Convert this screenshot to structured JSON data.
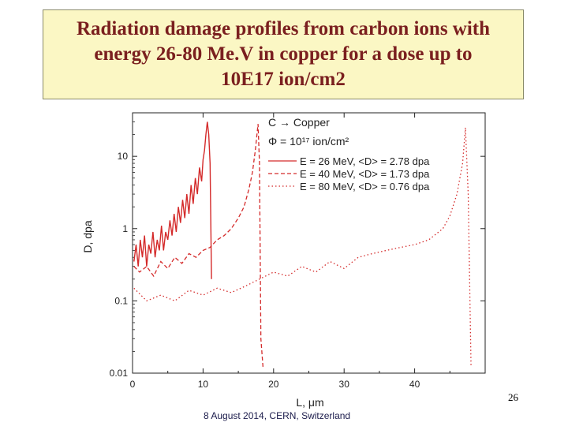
{
  "title": {
    "line1": "Radiation damage profiles from carbon ions with",
    "line2": "energy 26-80 Me.V in copper for a dose up to",
    "line3": "10E17 ion/cm2"
  },
  "footer": "8 August 2014, CERN, Switzerland",
  "slide_number": "26",
  "chart_data": {
    "type": "line",
    "annotation": {
      "line1": "C → Copper",
      "line2": "Φ = 10¹⁷ ion/cm²"
    },
    "xlabel": "L, μm",
    "ylabel": "D, dpa",
    "xlim": [
      0,
      50
    ],
    "ylim": [
      0.01,
      40
    ],
    "yscale": "log",
    "xticks": [
      0,
      10,
      20,
      30,
      40
    ],
    "yticks": [
      0.01,
      0.1,
      1,
      10
    ],
    "ytick_labels": [
      "0.01",
      "0.1",
      "1",
      "10"
    ],
    "legend_position": "top-right",
    "color": "#d42a2a",
    "series": [
      {
        "name": "E = 26 MeV, <D> = 2.78 dpa",
        "style": "solid",
        "x": [
          0.2,
          0.5,
          0.8,
          1.1,
          1.4,
          1.7,
          2.0,
          2.3,
          2.6,
          2.9,
          3.2,
          3.5,
          3.8,
          4.1,
          4.4,
          4.7,
          5.0,
          5.3,
          5.6,
          5.9,
          6.2,
          6.5,
          6.8,
          7.1,
          7.4,
          7.7,
          8.0,
          8.3,
          8.6,
          8.9,
          9.2,
          9.5,
          9.8,
          10.0,
          10.2,
          10.4,
          10.6,
          10.8,
          11.0,
          11.2
        ],
        "y": [
          0.35,
          0.6,
          0.3,
          0.7,
          0.4,
          0.8,
          0.3,
          0.6,
          0.45,
          0.9,
          0.4,
          0.7,
          0.5,
          1.1,
          0.5,
          0.9,
          0.7,
          1.3,
          0.8,
          1.6,
          0.9,
          2.0,
          1.2,
          2.5,
          1.4,
          3.0,
          1.6,
          4.0,
          2.2,
          5.0,
          3.0,
          7.0,
          4.5,
          9.0,
          12.0,
          20.0,
          30.0,
          20.0,
          8.0,
          0.2
        ]
      },
      {
        "name": "E = 40 MeV, <D> = 1.73 dpa",
        "style": "dashed",
        "x": [
          0.2,
          1,
          2,
          3,
          4,
          5,
          6,
          7,
          8,
          9,
          10,
          11,
          12,
          13,
          14,
          15,
          15.8,
          16.5,
          17.0,
          17.4,
          17.8,
          18.0,
          18.2,
          18.5
        ],
        "y": [
          0.3,
          0.25,
          0.3,
          0.22,
          0.35,
          0.28,
          0.4,
          0.33,
          0.45,
          0.4,
          0.5,
          0.55,
          0.7,
          0.8,
          1.0,
          1.4,
          2.0,
          3.5,
          6.0,
          12.0,
          28.0,
          8.0,
          0.03,
          0.012
        ]
      },
      {
        "name": "E = 80 MeV, <D> = 0.76 dpa",
        "style": "dotted",
        "x": [
          0.2,
          2,
          4,
          6,
          8,
          10,
          12,
          14,
          16,
          18,
          20,
          22,
          24,
          26,
          28,
          30,
          32,
          34,
          36,
          38,
          40,
          42,
          44,
          45,
          46,
          46.8,
          47.2,
          47.6,
          48.0
        ],
        "y": [
          0.15,
          0.1,
          0.12,
          0.1,
          0.14,
          0.12,
          0.15,
          0.13,
          0.16,
          0.2,
          0.25,
          0.22,
          0.3,
          0.25,
          0.35,
          0.28,
          0.4,
          0.45,
          0.5,
          0.55,
          0.6,
          0.7,
          1.0,
          1.5,
          3.0,
          8.0,
          25.0,
          3.0,
          0.012
        ]
      }
    ]
  }
}
